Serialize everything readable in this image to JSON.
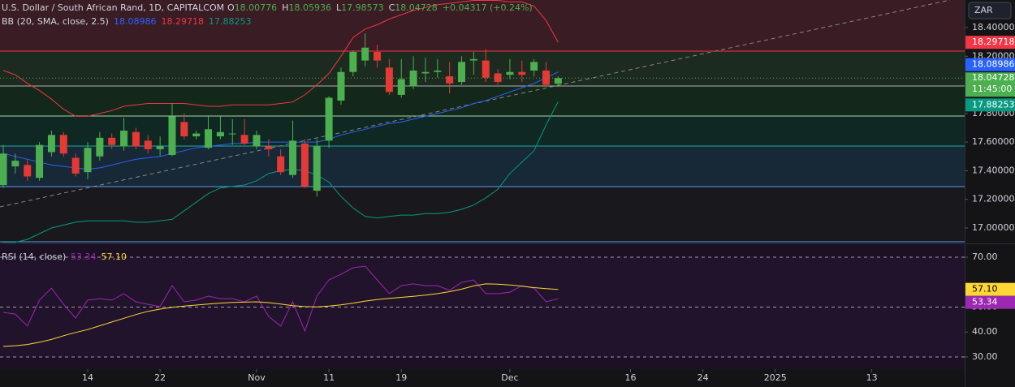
{
  "chart_data": [
    {
      "type": "candlestick",
      "title": "U.S. Dollar / South African Rand, 1D, CAPITALCOM",
      "ohlc_prefixes": [
        "O",
        "H",
        "L",
        "C"
      ],
      "change_label": "+0.04317 (+0.24%)",
      "currency": "ZAR",
      "countdown": "11:45:00",
      "up_color": "#4caf50",
      "down_color": "#e53935",
      "open": [
        17.3,
        17.43,
        17.44,
        17.35,
        17.53,
        17.65,
        17.49,
        17.39,
        17.5,
        17.63,
        17.57,
        17.67,
        17.61,
        17.55,
        17.51,
        17.74,
        17.64,
        17.56,
        17.64,
        17.66,
        17.65,
        17.57,
        17.57,
        17.5,
        17.37,
        17.59,
        17.26,
        17.61,
        17.89,
        18.09,
        18.17,
        18.23,
        18.12,
        17.93,
        17.99,
        18.08,
        18.09,
        18.06,
        18.02,
        18.17,
        18.17,
        18.08,
        18.07,
        18.09,
        18.1,
        18.1,
        18.00776
      ],
      "high": [
        17.58,
        17.52,
        17.48,
        17.6,
        17.68,
        17.67,
        17.52,
        17.6,
        17.67,
        17.66,
        17.77,
        17.7,
        17.65,
        17.64,
        17.87,
        17.8,
        17.68,
        17.78,
        17.78,
        17.76,
        17.76,
        17.68,
        17.62,
        17.55,
        17.75,
        17.62,
        17.62,
        17.92,
        18.12,
        18.24,
        18.36,
        18.28,
        18.18,
        18.18,
        18.2,
        18.19,
        18.18,
        18.16,
        18.2,
        18.23,
        18.25,
        18.11,
        18.18,
        18.17,
        18.18,
        18.16,
        18.05936
      ],
      "low": [
        17.28,
        17.38,
        17.33,
        17.33,
        17.5,
        17.5,
        17.36,
        17.34,
        17.47,
        17.55,
        17.54,
        17.55,
        17.52,
        17.5,
        17.5,
        17.62,
        17.62,
        17.55,
        17.62,
        17.58,
        17.58,
        17.55,
        17.5,
        17.37,
        17.35,
        17.28,
        17.22,
        17.56,
        17.86,
        18.06,
        18.13,
        18.12,
        17.93,
        17.91,
        17.97,
        18.02,
        18.05,
        17.94,
        18.0,
        18.07,
        18.02,
        18.0,
        18.04,
        18.02,
        18.06,
        17.99,
        17.98573
      ],
      "close": [
        17.52,
        17.47,
        17.36,
        17.58,
        17.65,
        17.52,
        17.38,
        17.56,
        17.63,
        17.58,
        17.68,
        17.57,
        17.55,
        17.57,
        17.78,
        17.64,
        17.66,
        17.69,
        17.67,
        17.66,
        17.59,
        17.65,
        17.55,
        17.39,
        17.61,
        17.29,
        17.57,
        17.91,
        18.09,
        18.23,
        18.26,
        18.17,
        17.95,
        18.04,
        18.1,
        18.09,
        18.1,
        18.01,
        18.16,
        18.18,
        18.05,
        18.02,
        18.09,
        18.07,
        18.16,
        18.0,
        18.04728
      ],
      "bands": {
        "title": "BB (20, SMA, close, 2.5)",
        "basis": {
          "color": "#2962ff",
          "values": [
            17.52,
            17.5,
            17.48,
            17.46,
            17.44,
            17.43,
            17.42,
            17.41,
            17.42,
            17.44,
            17.46,
            17.48,
            17.49,
            17.5,
            17.52,
            17.54,
            17.56,
            17.57,
            17.58,
            17.59,
            17.59,
            17.6,
            17.6,
            17.6,
            17.6,
            17.6,
            17.6,
            17.62,
            17.65,
            17.67,
            17.69,
            17.71,
            17.73,
            17.74,
            17.76,
            17.78,
            17.8,
            17.82,
            17.84,
            17.87,
            17.89,
            17.92,
            17.95,
            17.98,
            18.01,
            18.05,
            18.08986
          ]
        },
        "upper": {
          "color": "#f23645",
          "values": [
            18.1,
            18.07,
            18.01,
            17.96,
            17.9,
            17.83,
            17.78,
            17.78,
            17.8,
            17.82,
            17.85,
            17.86,
            17.87,
            17.87,
            17.87,
            17.87,
            17.86,
            17.85,
            17.85,
            17.86,
            17.86,
            17.86,
            17.86,
            17.87,
            17.88,
            17.93,
            18.0,
            18.08,
            18.2,
            18.33,
            18.39,
            18.42,
            18.46,
            18.49,
            18.52,
            18.54,
            18.56,
            18.57,
            18.58,
            18.59,
            18.59,
            18.59,
            18.58,
            18.58,
            18.55,
            18.45,
            18.29718
          ]
        },
        "lower": {
          "color": "#089981",
          "values": [
            16.9,
            16.9,
            16.92,
            16.96,
            17.0,
            17.02,
            17.04,
            17.05,
            17.05,
            17.05,
            17.05,
            17.04,
            17.04,
            17.05,
            17.06,
            17.12,
            17.18,
            17.24,
            17.28,
            17.29,
            17.3,
            17.33,
            17.38,
            17.4,
            17.41,
            17.4,
            17.37,
            17.32,
            17.22,
            17.14,
            17.08,
            17.07,
            17.08,
            17.09,
            17.09,
            17.1,
            17.1,
            17.11,
            17.13,
            17.16,
            17.21,
            17.27,
            17.38,
            17.46,
            17.54,
            17.72,
            17.88253
          ]
        }
      },
      "ylim": [
        16.892,
        18.593
      ],
      "yticks": [
        {
          "value": 18.4,
          "label": "18.40000"
        },
        {
          "value": 18.2,
          "label": "18.20000"
        },
        {
          "value": 17.8,
          "label": "17.80000"
        },
        {
          "value": 17.6,
          "label": "17.60000"
        },
        {
          "value": 17.4,
          "label": "17.40000"
        },
        {
          "value": 17.2,
          "label": "17.20000"
        },
        {
          "value": 17.0,
          "label": "17.00000"
        }
      ],
      "xlim": [
        -0.27,
        79.7
      ],
      "xticks": [
        {
          "value": 7,
          "label": "14"
        },
        {
          "value": 13,
          "label": "22"
        },
        {
          "value": 21,
          "label": "Nov"
        },
        {
          "value": 27,
          "label": "11"
        },
        {
          "value": 33,
          "label": "19"
        },
        {
          "value": 42,
          "label": "Dec"
        },
        {
          "value": 52,
          "label": "16"
        },
        {
          "value": 58,
          "label": "24"
        },
        {
          "value": 64,
          "label": "2025"
        },
        {
          "value": 72,
          "label": "13"
        }
      ]
    },
    {
      "type": "line",
      "title": "RSI (14, close)",
      "series": [
        {
          "color": "#9c27b0",
          "values": [
            47.9,
            47.2,
            42.4,
            52.8,
            57.6,
            51.1,
            45.6,
            52.8,
            53.4,
            52.8,
            55.4,
            52.1,
            51.1,
            50.2,
            58.6,
            52.1,
            52.8,
            54.4,
            53.4,
            53.4,
            52.1,
            54.4,
            46.3,
            42.4,
            52.1,
            40.4,
            54.4,
            60.9,
            63.2,
            65.8,
            66.4,
            60.9,
            55.4,
            58.6,
            59.3,
            58.6,
            58.6,
            56.7,
            59.9,
            60.9,
            55.4,
            55.4,
            56.0,
            58.6,
            57.6,
            52.1,
            53.34
          ]
        },
        {
          "color": "#fdd835",
          "last_label": "57.10",
          "values": [
            34.2,
            34.5,
            35.0,
            35.9,
            37.0,
            38.5,
            39.8,
            41.0,
            42.5,
            44.0,
            45.5,
            47.0,
            48.3,
            49.2,
            49.9,
            50.4,
            50.8,
            51.2,
            51.6,
            51.9,
            52.0,
            52.1,
            51.8,
            51.2,
            50.6,
            50.2,
            50.1,
            50.4,
            50.9,
            51.6,
            52.4,
            53.0,
            53.5,
            53.9,
            54.3,
            54.8,
            55.4,
            56.2,
            57.2,
            58.5,
            59.3,
            59.2,
            58.9,
            58.4,
            57.8,
            57.4,
            57.1
          ]
        }
      ],
      "bands": [
        70,
        50,
        30
      ],
      "ylim": [
        25.1,
        74.9
      ],
      "yticks": [
        {
          "value": 70,
          "label": "70.00"
        },
        {
          "value": 50,
          "label": "50.00"
        },
        {
          "value": 40,
          "label": "40.00"
        },
        {
          "value": 30,
          "label": "30.00"
        }
      ]
    }
  ]
}
